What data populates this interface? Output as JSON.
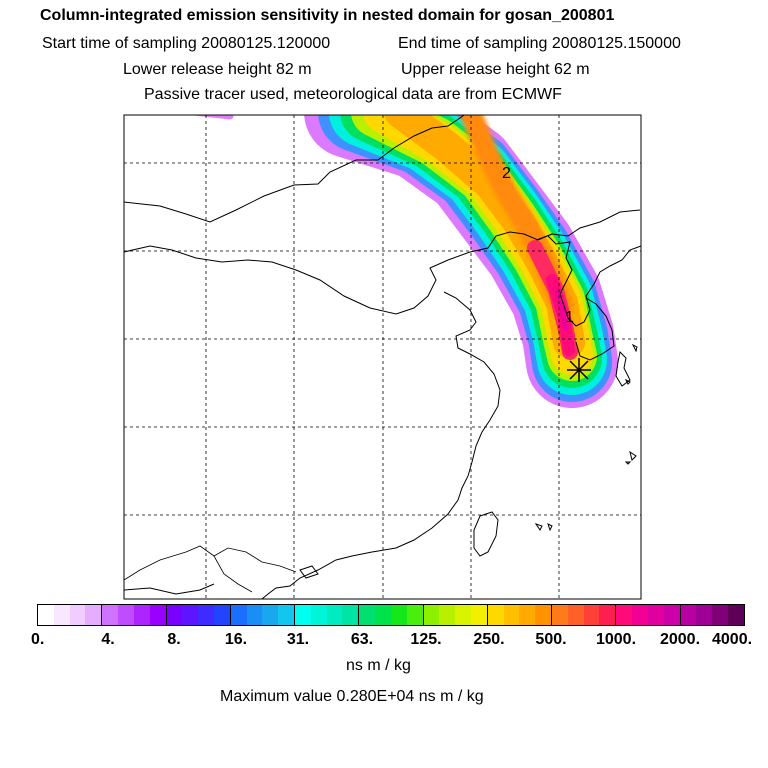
{
  "header": {
    "title": "Column-integrated emission sensitivity in nested domain for gosan_200801",
    "start_time": "Start time of sampling 20080125.120000",
    "end_time": "End time of sampling 20080125.150000",
    "lower_release": "Lower release height   82 m",
    "upper_release": "Upper release height   62 m",
    "tracer_info": "Passive tracer used, meteorological data are from ECMWF"
  },
  "map": {
    "labels": [
      {
        "text": "1",
        "name": "plume-label-day-1"
      },
      {
        "text": "2",
        "name": "plume-label-day-2"
      }
    ],
    "receptor_marker": "asterisk-receptor-icon",
    "gridlines": "dashed"
  },
  "colorbar": {
    "tick_labels": [
      "0.",
      "4.",
      "8.",
      "16.",
      "31.",
      "63.",
      "125.",
      "250.",
      "500.",
      "1000.",
      "2000.",
      "4000."
    ],
    "colors": [
      "#ffffff",
      "#f9e6ff",
      "#f0ccff",
      "#e6adff",
      "#cf72ff",
      "#bf4dff",
      "#ad24ff",
      "#9a00ff",
      "#7a00ff",
      "#5e14ff",
      "#3f2aff",
      "#2244ff",
      "#1c6eff",
      "#1b8ef5",
      "#19a8f0",
      "#12c6f0",
      "#00ffee",
      "#00f5d8",
      "#00ecc0",
      "#00e5a3",
      "#00e070",
      "#00e24a",
      "#14e81a",
      "#4aee0c",
      "#8cf000",
      "#b8f000",
      "#d8f200",
      "#f2f000",
      "#ffd800",
      "#ffc000",
      "#ffaa00",
      "#ff9200",
      "#ff7a1a",
      "#ff6028",
      "#ff4038",
      "#ff1e50",
      "#ff0a78",
      "#f20094",
      "#e000a0",
      "#cc00a8",
      "#b800a2",
      "#9e0096",
      "#800078",
      "#5e0058"
    ],
    "units": "ns m / kg",
    "maximum": "Maximum value  0.280E+04 ns m / kg"
  }
}
